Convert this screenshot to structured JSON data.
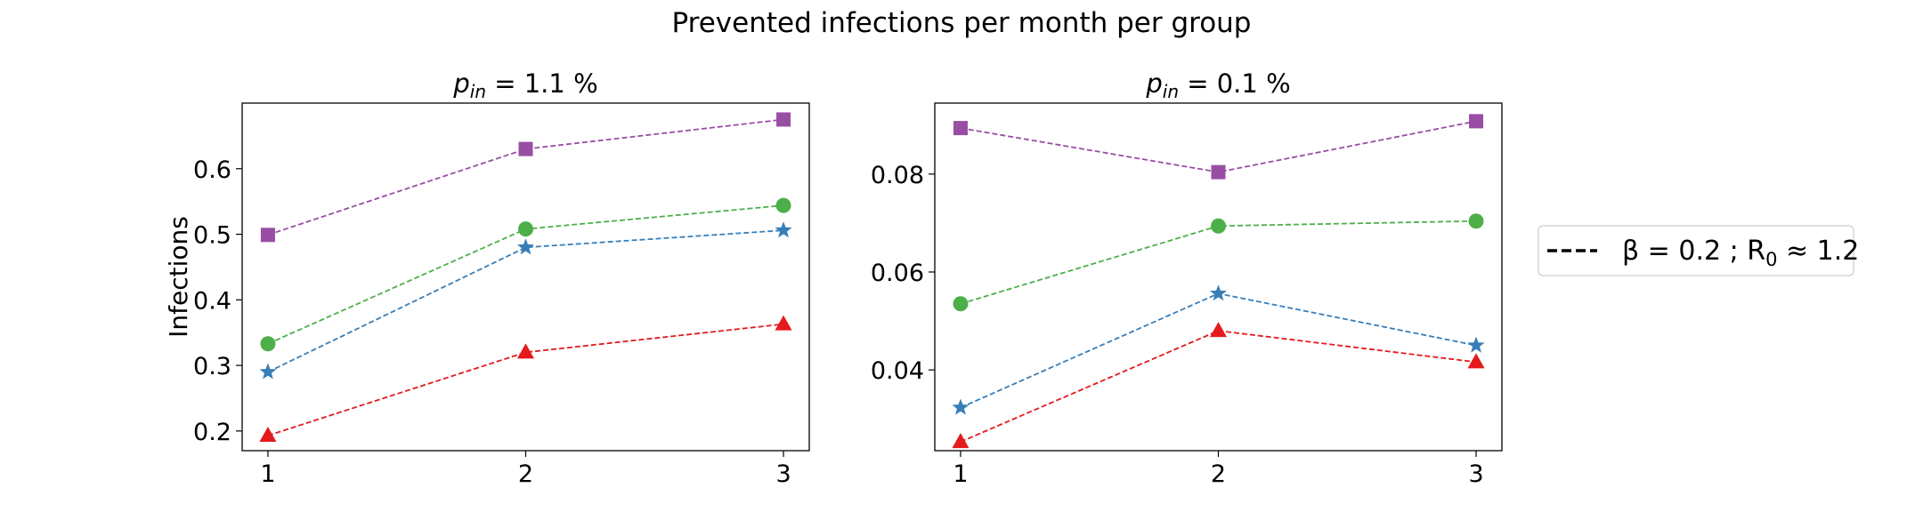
{
  "figure": {
    "title": "Prevented infections per month per group"
  },
  "legend": {
    "entries": [
      {
        "label_parts": [
          "β = 0.2 ; R",
          "0",
          " ≈ 1.2"
        ],
        "line_style": "dashed",
        "color": "#000000"
      }
    ],
    "placement": "right"
  },
  "chart_data": [
    {
      "type": "line",
      "title_parts": [
        "p",
        "in",
        " = 1.1 %"
      ],
      "xlabel": "",
      "ylabel": "Infections",
      "x": [
        1,
        2,
        3
      ],
      "xticks": [
        "1",
        "2",
        "3"
      ],
      "yticks": [
        "0.2",
        "0.3",
        "0.4",
        "0.5",
        "0.6"
      ],
      "ytick_values": [
        0.2,
        0.3,
        0.4,
        0.5,
        0.6
      ],
      "xlim": [
        0.9,
        3.1
      ],
      "ylim": [
        0.17,
        0.7
      ],
      "grid": false,
      "series": [
        {
          "values": [
            0.499,
            0.63,
            0.675
          ],
          "color": "#984ea3",
          "marker": "square"
        },
        {
          "values": [
            0.333,
            0.508,
            0.544
          ],
          "color": "#4daf4a",
          "marker": "circle"
        },
        {
          "values": [
            0.29,
            0.48,
            0.506
          ],
          "color": "#377eb8",
          "marker": "star"
        },
        {
          "values": [
            0.193,
            0.32,
            0.363
          ],
          "color": "#e41a1c",
          "marker": "triangle"
        }
      ]
    },
    {
      "type": "line",
      "title_parts": [
        "p",
        "in",
        " = 0.1 %"
      ],
      "xlabel": "",
      "ylabel": "",
      "x": [
        1,
        2,
        3
      ],
      "xticks": [
        "1",
        "2",
        "3"
      ],
      "yticks": [
        "0.04",
        "0.06",
        "0.08"
      ],
      "ytick_values": [
        0.04,
        0.06,
        0.08
      ],
      "xlim": [
        0.9,
        3.1
      ],
      "ylim": [
        0.0235,
        0.0945
      ],
      "grid": false,
      "series": [
        {
          "values": [
            0.0894,
            0.0804,
            0.0908
          ],
          "color": "#984ea3",
          "marker": "square"
        },
        {
          "values": [
            0.0535,
            0.0694,
            0.0704
          ],
          "color": "#4daf4a",
          "marker": "circle"
        },
        {
          "values": [
            0.0323,
            0.0556,
            0.045
          ],
          "color": "#377eb8",
          "marker": "star"
        },
        {
          "values": [
            0.0253,
            0.048,
            0.0416
          ],
          "color": "#e41a1c",
          "marker": "triangle"
        }
      ]
    }
  ]
}
